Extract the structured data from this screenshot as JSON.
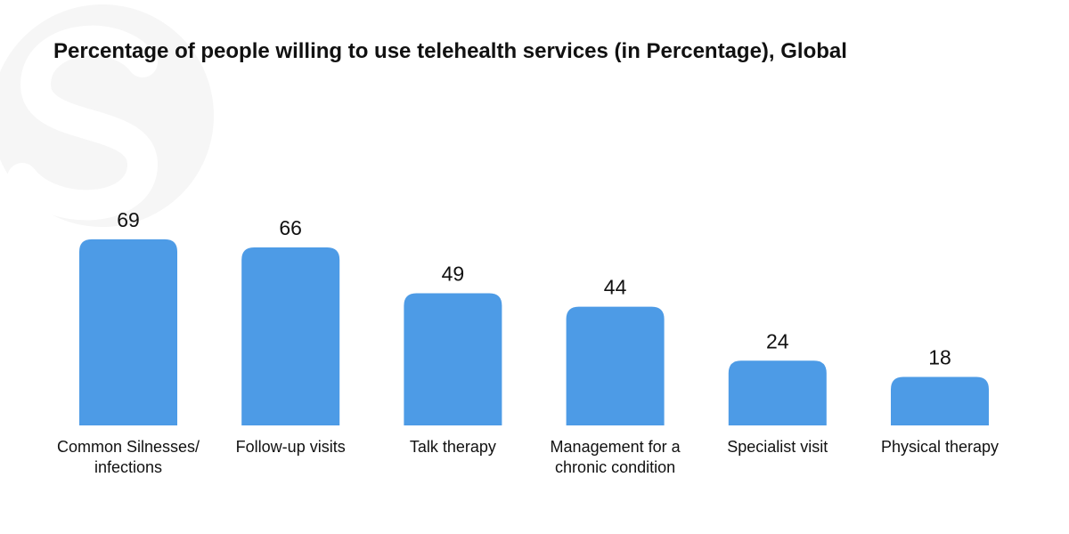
{
  "chart_data": {
    "type": "bar",
    "title": "Percentage of people willing to use telehealth services (in Percentage), Global",
    "categories": [
      [
        "Common Silnesses/",
        "infections"
      ],
      [
        "Follow-up visits"
      ],
      [
        "Talk therapy"
      ],
      [
        "Management for a",
        "chronic condition"
      ],
      [
        "Specialist visit"
      ],
      [
        "Physical therapy"
      ]
    ],
    "values": [
      69,
      66,
      49,
      44,
      24,
      18
    ],
    "ylim": [
      0,
      100
    ],
    "grid": false,
    "legend": "none",
    "bar_color": "#4d9be6"
  },
  "watermark": {
    "color": "#f5f5f5"
  }
}
